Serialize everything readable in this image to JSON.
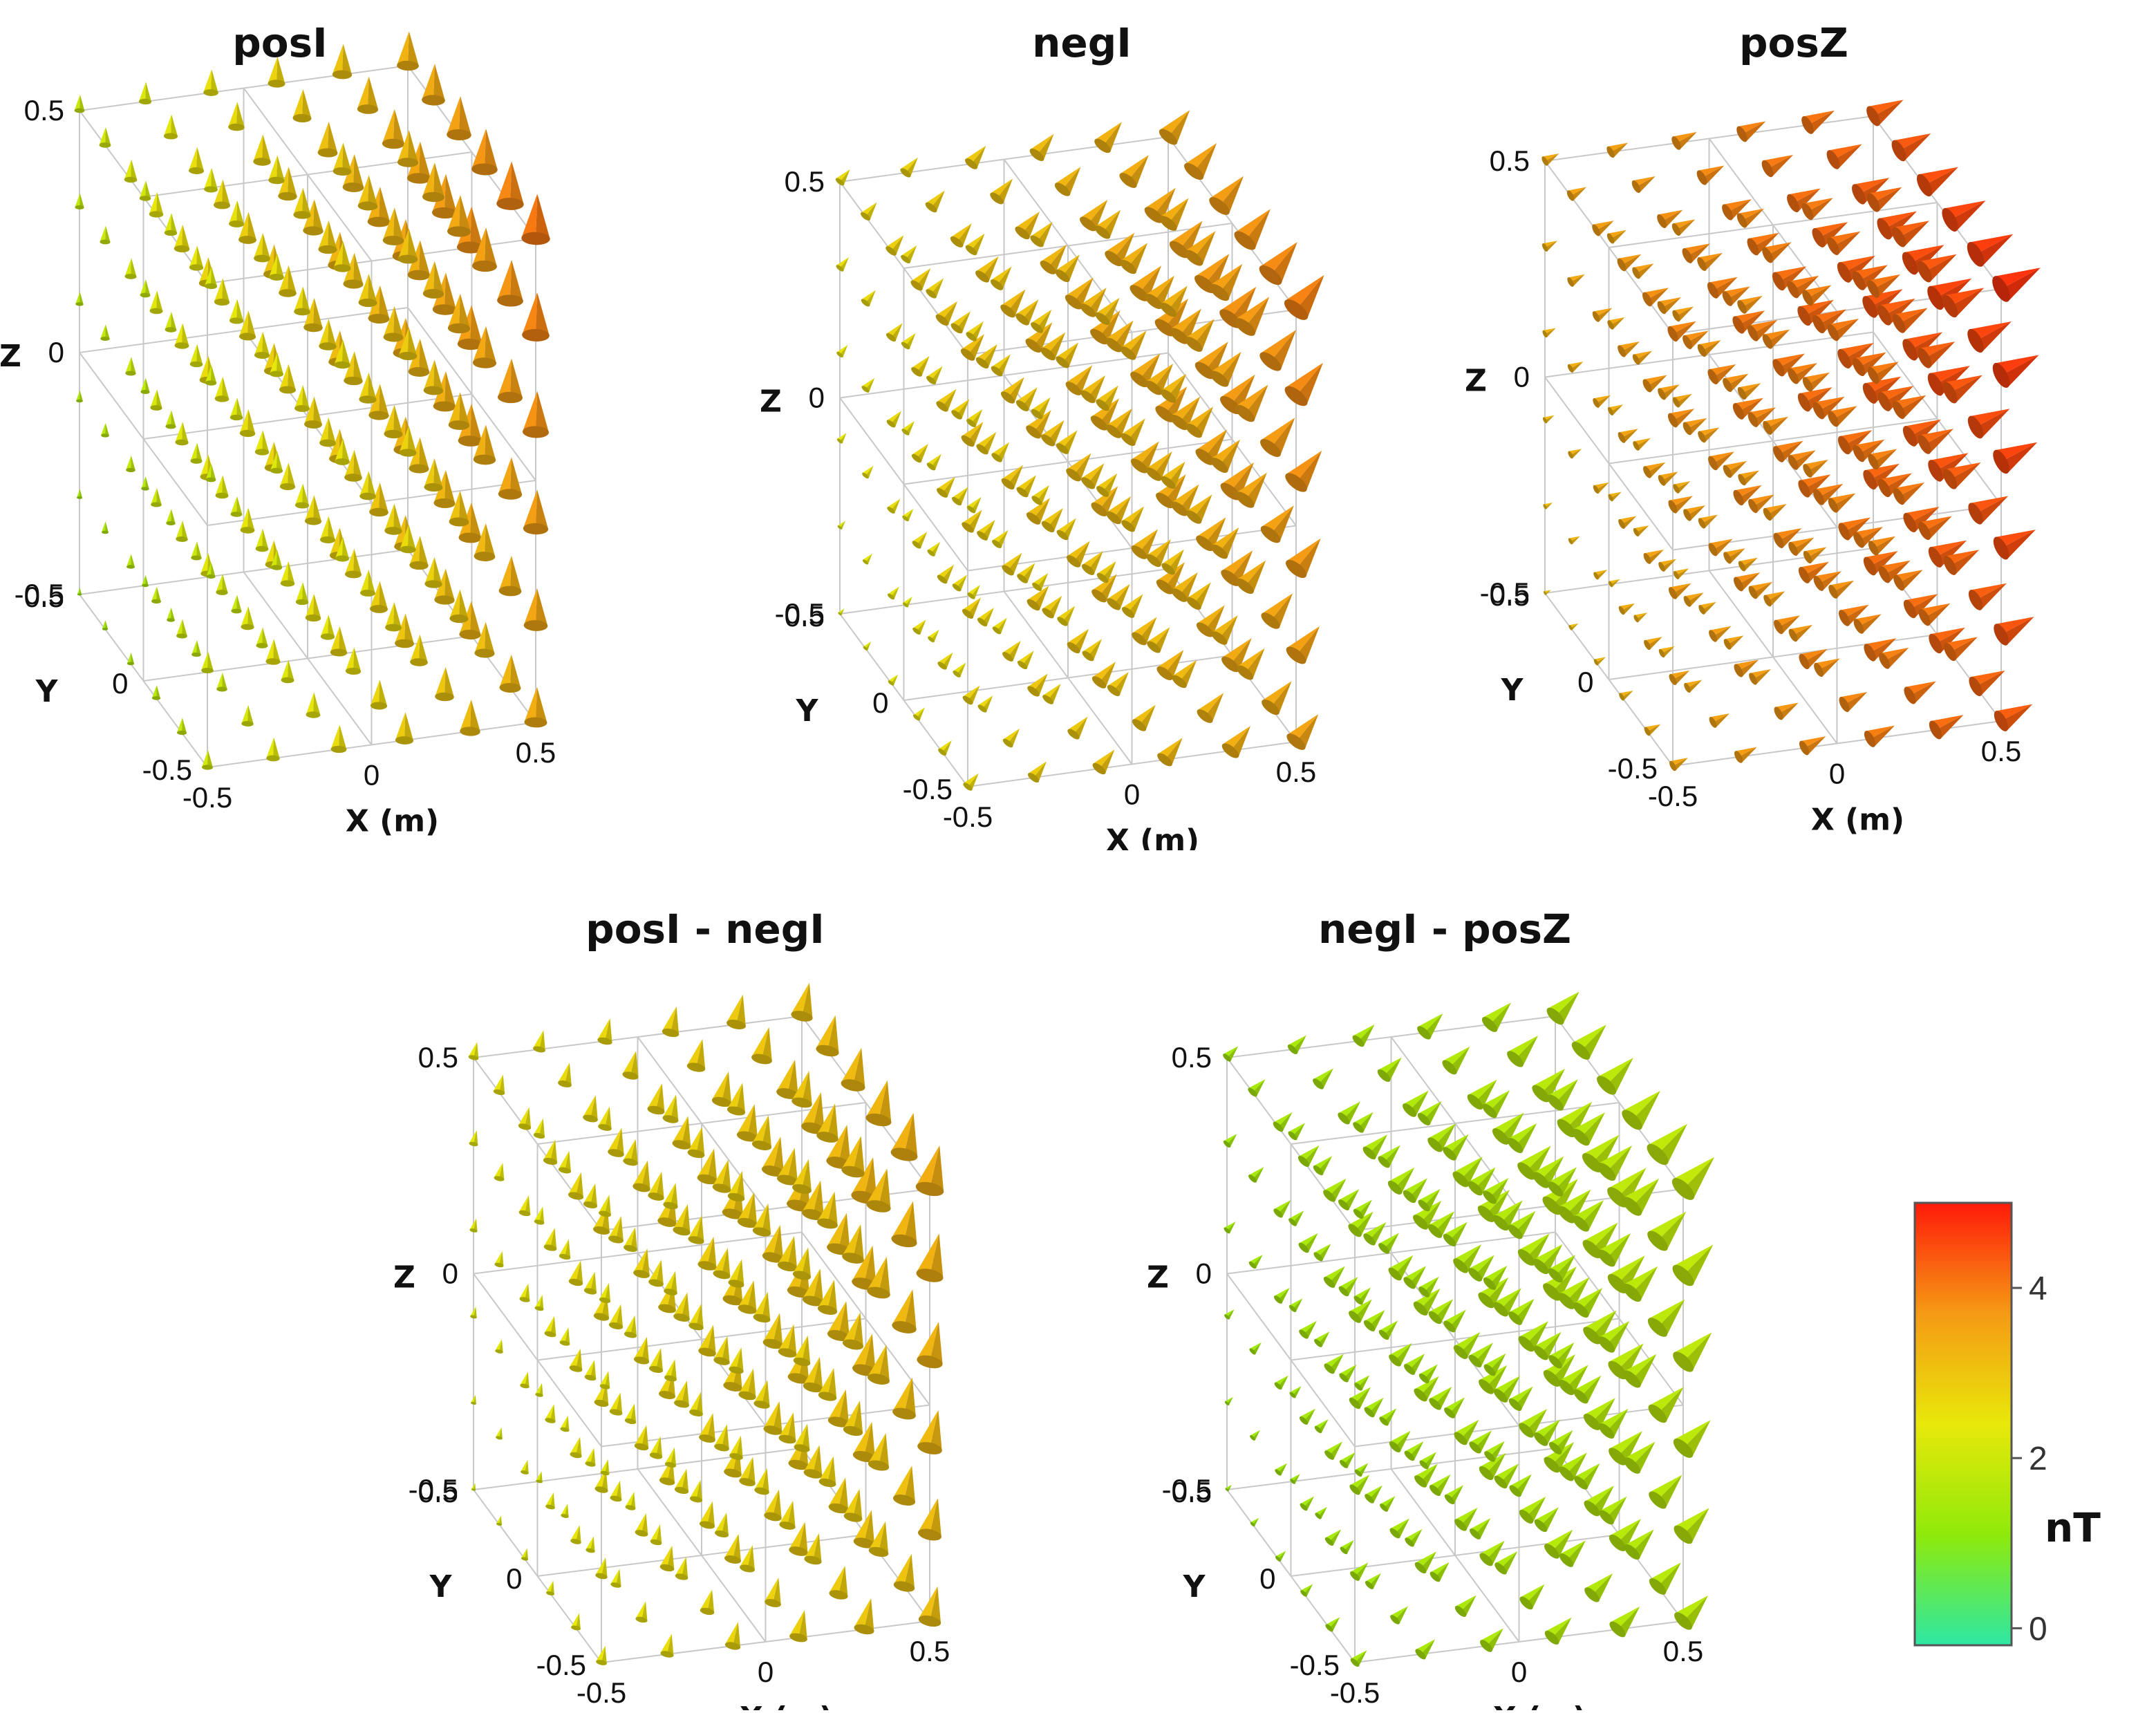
{
  "chart_data": [
    {
      "type": "cone-field-3d",
      "title": "posI",
      "xlabel": "X (m)",
      "ylabel": "Y",
      "zlabel": "Z",
      "x_ticks": [
        "-0.5",
        "0",
        "0.5"
      ],
      "y_ticks": [
        "-0.5",
        "0",
        "0.5"
      ],
      "z_ticks": [
        "-0.5",
        "0",
        "0.5"
      ],
      "magnitude_range_nT": [
        1.3,
        4.3
      ]
    },
    {
      "type": "cone-field-3d",
      "title": "negI",
      "xlabel": "X (m)",
      "ylabel": "Y",
      "zlabel": "Z",
      "x_ticks": [
        "-0.5",
        "0",
        "0.5"
      ],
      "y_ticks": [
        "-0.5",
        "0",
        "0.5"
      ],
      "z_ticks": [
        "-0.5",
        "0",
        "0.5"
      ],
      "magnitude_range_nT": [
        2.2,
        4.1
      ]
    },
    {
      "type": "cone-field-3d",
      "title": "posZ",
      "xlabel": "X (m)",
      "ylabel": "Y",
      "zlabel": "Z",
      "x_ticks": [
        "-0.5",
        "0",
        "0.5"
      ],
      "y_ticks": [
        "-0.5",
        "0",
        "0.5"
      ],
      "z_ticks": [
        "-0.5",
        "0",
        "0.5"
      ],
      "magnitude_range_nT": [
        3.0,
        4.9
      ]
    },
    {
      "type": "cone-field-3d",
      "title": "posI - negI",
      "xlabel": "X (m)",
      "ylabel": "Y",
      "zlabel": "Z",
      "x_ticks": [
        "-0.5",
        "0",
        "0.5"
      ],
      "y_ticks": [
        "-0.5",
        "0",
        "0.5"
      ],
      "z_ticks": [
        "-0.5",
        "0",
        "0.5"
      ],
      "magnitude_range_nT": [
        2.1,
        3.5
      ]
    },
    {
      "type": "cone-field-3d",
      "title": "negI - posZ",
      "xlabel": "X (m)",
      "ylabel": "Y",
      "zlabel": "Z",
      "x_ticks": [
        "-0.5",
        "0",
        "0.5"
      ],
      "y_ticks": [
        "-0.5",
        "0",
        "0.5"
      ],
      "z_ticks": [
        "-0.5",
        "0",
        "0.5"
      ],
      "magnitude_range_nT": [
        1.3,
        1.9
      ]
    }
  ],
  "colorbar": {
    "unit": "nT",
    "range": [
      -0.2,
      5
    ],
    "ticks": [
      "0",
      "2",
      "4"
    ],
    "tick_values": [
      0,
      2,
      4
    ],
    "colors": [
      "#2de8a4",
      "#8fea0a",
      "#e8e80a",
      "#f59a14",
      "#ff1a0a"
    ]
  }
}
